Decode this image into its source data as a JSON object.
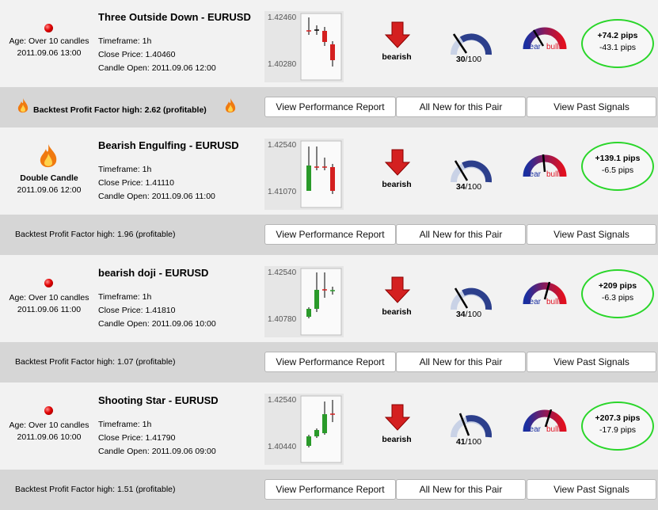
{
  "buttons": {
    "performance": "View Performance Report",
    "all_new": "All New for this Pair",
    "past": "View Past Signals"
  },
  "signals": [
    {
      "status_icon": "red-dot-icon",
      "age": "Age: Over 10 candles",
      "date": "2011.09.06 13:00",
      "title": "Three Outside Down - EURUSD",
      "timeframe": "Timeframe: 1h",
      "close": "Close Price: 1.40460",
      "candle_open": "Candle Open: 2011.09.06 12:00",
      "chart_high": "1.42460",
      "chart_low": "1.40280",
      "direction": "bearish",
      "strength_value": "30",
      "strength_max": "/100",
      "sentiment": {
        "bear": "bear",
        "bull": "bull"
      },
      "pips_up": "+74.2 pips",
      "pips_down": "-43.1 pips",
      "backtest": "Backtest Profit Factor high: 2.62 (profitable)"
    },
    {
      "status_icon": "fire-icon",
      "age": "Double Candle",
      "date": "2011.09.06 12:00",
      "title": "Bearish Engulfing - EURUSD",
      "timeframe": "Timeframe: 1h",
      "close": "Close Price: 1.41110",
      "candle_open": "Candle Open: 2011.09.06 11:00",
      "chart_high": "1.42540",
      "chart_low": "1.41070",
      "direction": "bearish",
      "strength_value": "34",
      "strength_max": "/100",
      "sentiment": {
        "bear": "bear",
        "bull": "bull"
      },
      "pips_up": "+139.1 pips",
      "pips_down": "-6.5 pips",
      "backtest": "Backtest Profit Factor high: 1.96 (profitable)"
    },
    {
      "status_icon": "red-dot-icon",
      "age": "Age: Over 10 candles",
      "date": "2011.09.06 11:00",
      "title": "bearish doji - EURUSD",
      "timeframe": "Timeframe: 1h",
      "close": "Close Price: 1.41810",
      "candle_open": "Candle Open: 2011.09.06 10:00",
      "chart_high": "1.42540",
      "chart_low": "1.40780",
      "direction": "bearish",
      "strength_value": "34",
      "strength_max": "/100",
      "sentiment": {
        "bear": "bear",
        "bull": "bull"
      },
      "pips_up": "+209 pips",
      "pips_down": "-6.3 pips",
      "backtest": "Backtest Profit Factor high: 1.07 (profitable)"
    },
    {
      "status_icon": "red-dot-icon",
      "age": "Age: Over 10 candles",
      "date": "2011.09.06 10:00",
      "title": "Shooting Star - EURUSD",
      "timeframe": "Timeframe: 1h",
      "close": "Close Price: 1.41790",
      "candle_open": "Candle Open: 2011.09.06 09:00",
      "chart_high": "1.42540",
      "chart_low": "1.40440",
      "direction": "bearish",
      "strength_value": "41",
      "strength_max": "/100",
      "sentiment": {
        "bear": "bear",
        "bull": "bull"
      },
      "pips_up": "+207.3 pips",
      "pips_down": "-17.9 pips",
      "backtest": "Backtest Profit Factor high: 1.51 (profitable)"
    }
  ],
  "colors": {
    "bull_candle": "#2a9a2a",
    "bear_candle": "#d42020",
    "oval_border": "#2ad62a",
    "band": "#d6d6d6",
    "row": "#f2f2f2"
  }
}
